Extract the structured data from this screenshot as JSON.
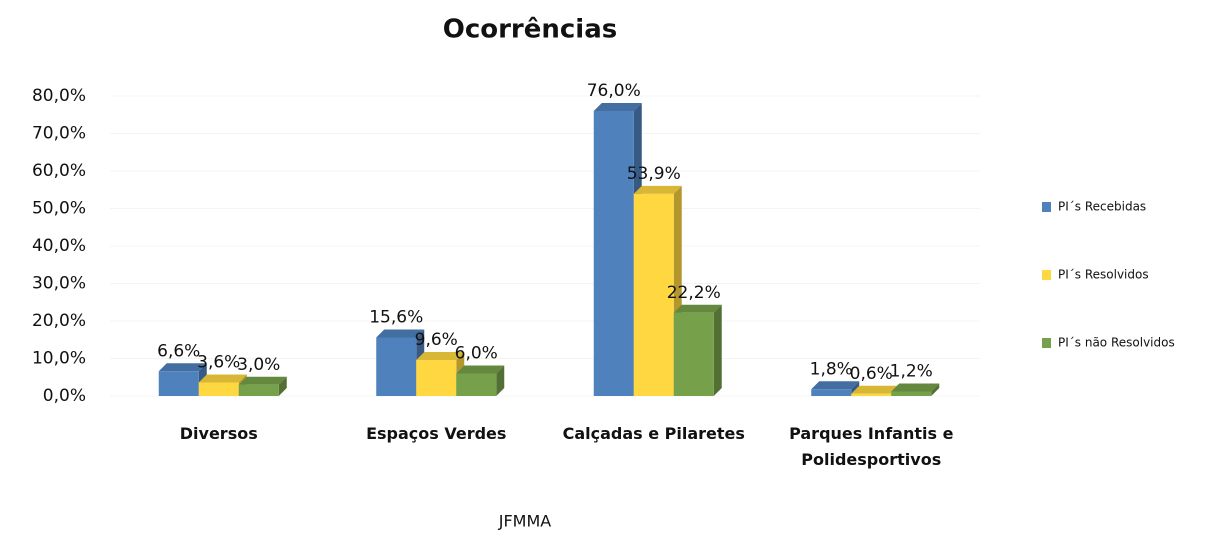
{
  "chart_data": {
    "type": "bar",
    "title": "Ocorrências",
    "x_label": "JFMMA",
    "categories": [
      "Diversos",
      "Espaços Verdes",
      "Calçadas e Pilaretes",
      "Parques Infantis e Polidesportivos"
    ],
    "series": [
      {
        "name": "PI´s Recebidas",
        "color": "#4f81bd",
        "values": [
          6.6,
          15.6,
          76.0,
          1.8
        ],
        "value_labels": [
          "6,6%",
          "15,6%",
          "76,0%",
          "1,8%"
        ]
      },
      {
        "name": "PI´s Resolvidos",
        "color": "#ffd740",
        "values": [
          3.6,
          9.6,
          53.9,
          0.6
        ],
        "value_labels": [
          "3,6%",
          "9,6%",
          "53,9%",
          "0,6%"
        ]
      },
      {
        "name": "PI´s não Resolvidos",
        "color": "#77a04a",
        "values": [
          3.0,
          6.0,
          22.2,
          1.2
        ],
        "value_labels": [
          "3,0%",
          "6,0%",
          "22,2%",
          "1,2%"
        ]
      }
    ],
    "ylim": [
      0,
      80
    ],
    "yticks": [
      {
        "value": 0,
        "label": "0,0%"
      },
      {
        "value": 10,
        "label": "10,0%"
      },
      {
        "value": 20,
        "label": "20,0%"
      },
      {
        "value": 30,
        "label": "30,0%"
      },
      {
        "value": 40,
        "label": "40,0%"
      },
      {
        "value": 50,
        "label": "50,0%"
      },
      {
        "value": 60,
        "label": "60,0%"
      },
      {
        "value": 70,
        "label": "70,0%"
      },
      {
        "value": 80,
        "label": "80,0%"
      }
    ],
    "legend": "right"
  }
}
